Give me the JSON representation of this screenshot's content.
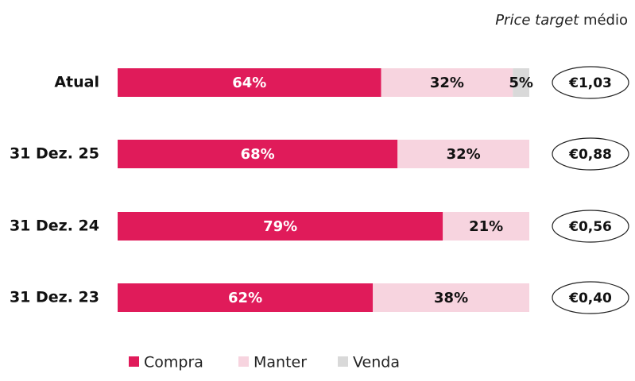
{
  "chart_data": {
    "type": "stacked-bar-horizontal",
    "header": {
      "italic": "Price target",
      "normal": "médio"
    },
    "categories": [
      "Atual",
      "31 Dez. 25",
      "31 Dez. 24",
      "31 Dez. 23"
    ],
    "xlim": [
      0,
      100
    ],
    "series": [
      {
        "name": "Compra",
        "color": "#e01b5a",
        "values": [
          64,
          68,
          79,
          62
        ],
        "value_labels": [
          "64%",
          "68%",
          "79%",
          "62%"
        ]
      },
      {
        "name": "Manter",
        "color": "#f7d4df",
        "values": [
          32,
          32,
          21,
          38
        ],
        "value_labels": [
          "32%",
          "32%",
          "21%",
          "38%"
        ]
      },
      {
        "name": "Venda",
        "color": "#d9d9d9",
        "values": [
          5,
          null,
          null,
          null
        ],
        "value_labels": [
          "5%",
          null,
          null,
          null
        ]
      }
    ],
    "price_targets": [
      "€1,03",
      "€0,88",
      "€0,56",
      "€0,40"
    ]
  }
}
